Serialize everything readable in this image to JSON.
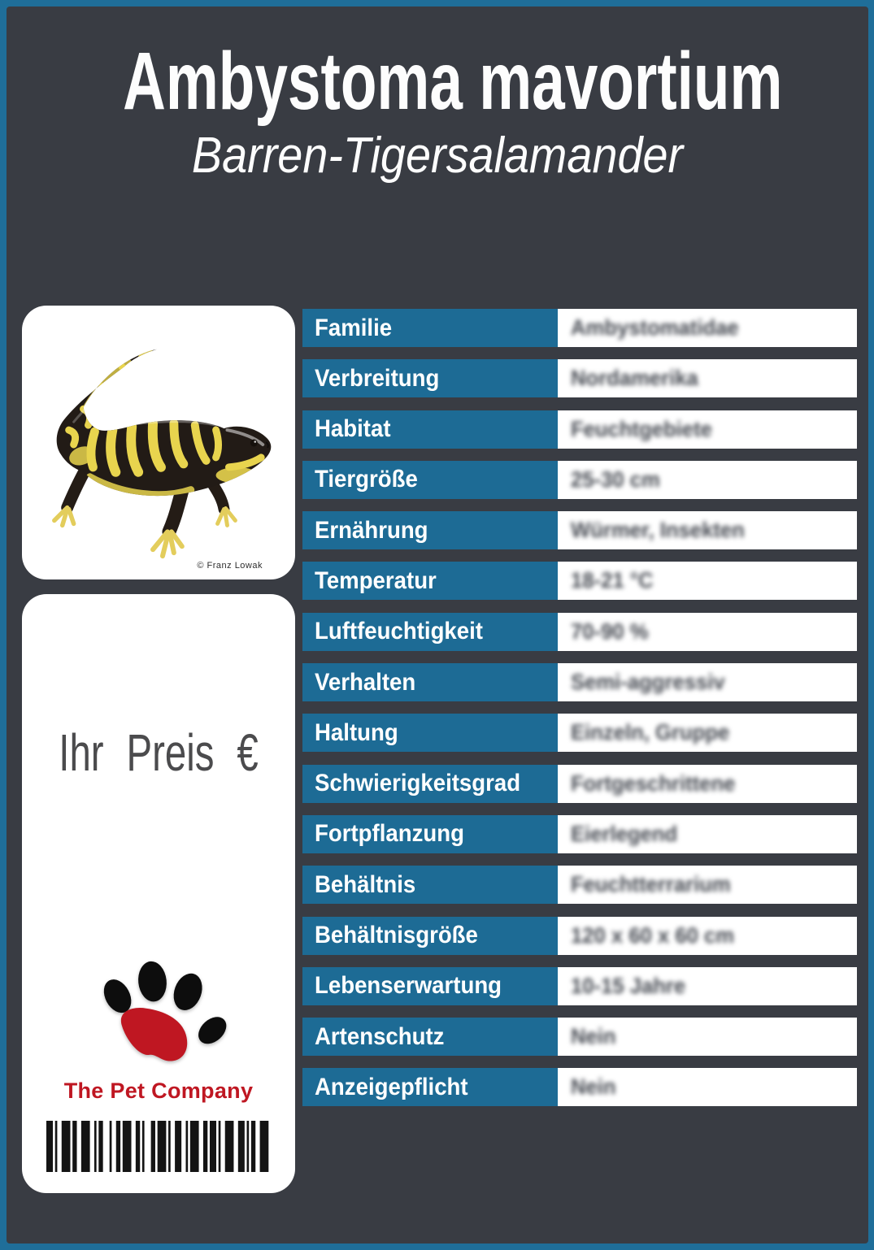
{
  "header": {
    "title": "Ambystoma mavortium",
    "subtitle": "Barren-Tigersalamander"
  },
  "photo": {
    "credit": "© Franz Lowak"
  },
  "price_box": {
    "label": "Ihr Preis €"
  },
  "logo": {
    "company": "The Pet Company"
  },
  "info_table": {
    "rows": [
      {
        "label": "Familie",
        "value": "Ambystomatidae"
      },
      {
        "label": "Verbreitung",
        "value": "Nordamerika"
      },
      {
        "label": "Habitat",
        "value": "Feuchtgebiete"
      },
      {
        "label": "Tiergröße",
        "value": "25-30 cm"
      },
      {
        "label": "Ernährung",
        "value": "Würmer, Insekten"
      },
      {
        "label": "Temperatur",
        "value": "18-21 °C"
      },
      {
        "label": "Luftfeuchtigkeit",
        "value": "70-90 %"
      },
      {
        "label": "Verhalten",
        "value": "Semi-aggressiv"
      },
      {
        "label": "Haltung",
        "value": "Einzeln, Gruppe"
      },
      {
        "label": "Schwierigkeitsgrad",
        "value": "Fortgeschrittene"
      },
      {
        "label": "Fortpflanzung",
        "value": "Eierlegend"
      },
      {
        "label": "Behältnis",
        "value": "Feuchtterrarium"
      },
      {
        "label": "Behältnisgröße",
        "value": "120 x 60 x 60 cm"
      },
      {
        "label": "Lebenserwartung",
        "value": "10-15 Jahre"
      },
      {
        "label": "Artenschutz",
        "value": "Nein"
      },
      {
        "label": "Anzeigepflicht",
        "value": "Nein"
      }
    ]
  },
  "colors": {
    "frame_border": "#1f6e99",
    "background": "#393c43",
    "label_cell": "#1d6b95",
    "logo_red": "#bf1722",
    "value_text": "#454951"
  }
}
